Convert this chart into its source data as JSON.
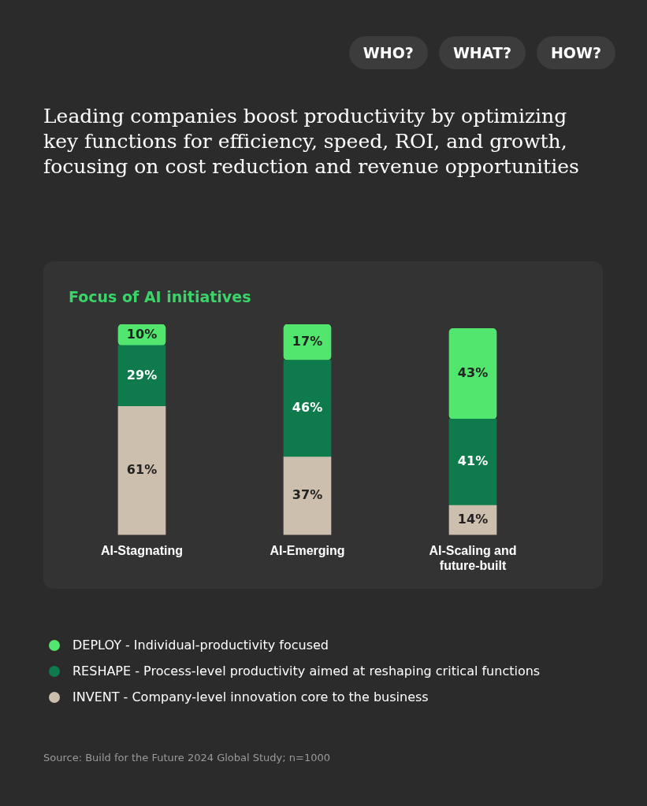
{
  "chart_data": {
    "type": "bar",
    "title": "Leading companies boost productivity by optimizing key functions for efficiency, speed, ROI, and growth, focusing on cost reduction and revenue opportunities",
    "subtitle": "Focus of AI initiatives",
    "categories": [
      "AI-Stagnating",
      "AI-Emerging",
      "AI-Scaling and future-built"
    ],
    "stacked": true,
    "legend": "bottom",
    "series": [
      {
        "name": "INVENT - Company-level innovation core to the business",
        "color": "#cdbfae",
        "values": [
          61,
          37,
          14
        ],
        "value_labels": [
          "61%",
          "37%",
          "14%"
        ]
      },
      {
        "name": "RESHAPE - Process-level productivity aimed at reshaping critical functions",
        "color": "#0f7a4b",
        "values": [
          29,
          46,
          41
        ],
        "value_labels": [
          "29%",
          "46%",
          "41%"
        ]
      },
      {
        "name": "DEPLOY - Individual-productivity focused",
        "color": "#52e66e",
        "values": [
          10,
          17,
          43
        ],
        "value_labels": [
          "10%",
          "17%",
          "43%"
        ]
      }
    ],
    "annotations": [
      "WHO?",
      "WHAT?",
      "HOW?",
      "Source: Build for the Future 2024 Global Study; n=1000"
    ]
  }
}
